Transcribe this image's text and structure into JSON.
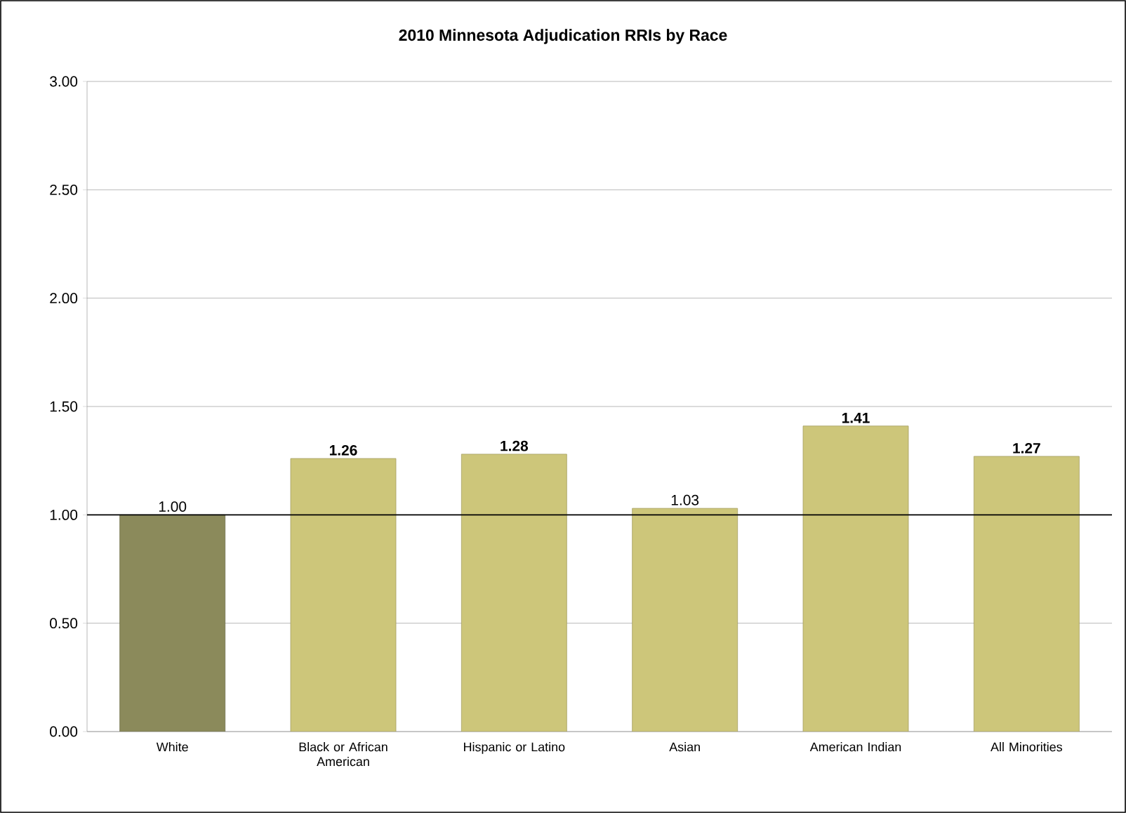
{
  "chart_data": {
    "type": "bar",
    "title": "2010 Minnesota Adjudication RRIs by Race",
    "categories": [
      "White",
      "Black or African American",
      "Hispanic or Latino",
      "Asian",
      "American Indian",
      "All Minorities"
    ],
    "values": [
      1.0,
      1.26,
      1.28,
      1.03,
      1.41,
      1.27
    ],
    "colors": [
      "#8b8a5b",
      "#cdc67a",
      "#cdc67a",
      "#cdc67a",
      "#cdc67a",
      "#cdc67a"
    ],
    "value_labels": [
      "1.00",
      "**1.26**",
      "**1.28**",
      "1.03",
      "**1.41**",
      "**1.27**"
    ],
    "ylim": [
      0,
      3
    ],
    "yticks": [
      {
        "value": 0,
        "label": "0.00"
      },
      {
        "value": 0.5,
        "label": "0.50"
      },
      {
        "value": 1,
        "label": "1.00"
      },
      {
        "value": 1.5,
        "label": "1.50"
      },
      {
        "value": 2,
        "label": "2.00"
      },
      {
        "value": 2.5,
        "label": "2.50"
      },
      {
        "value": 3,
        "label": "3.00"
      }
    ],
    "ref_lines": [
      {
        "axis": "y",
        "value": 1,
        "color": "#000000"
      }
    ],
    "grid": "y"
  }
}
